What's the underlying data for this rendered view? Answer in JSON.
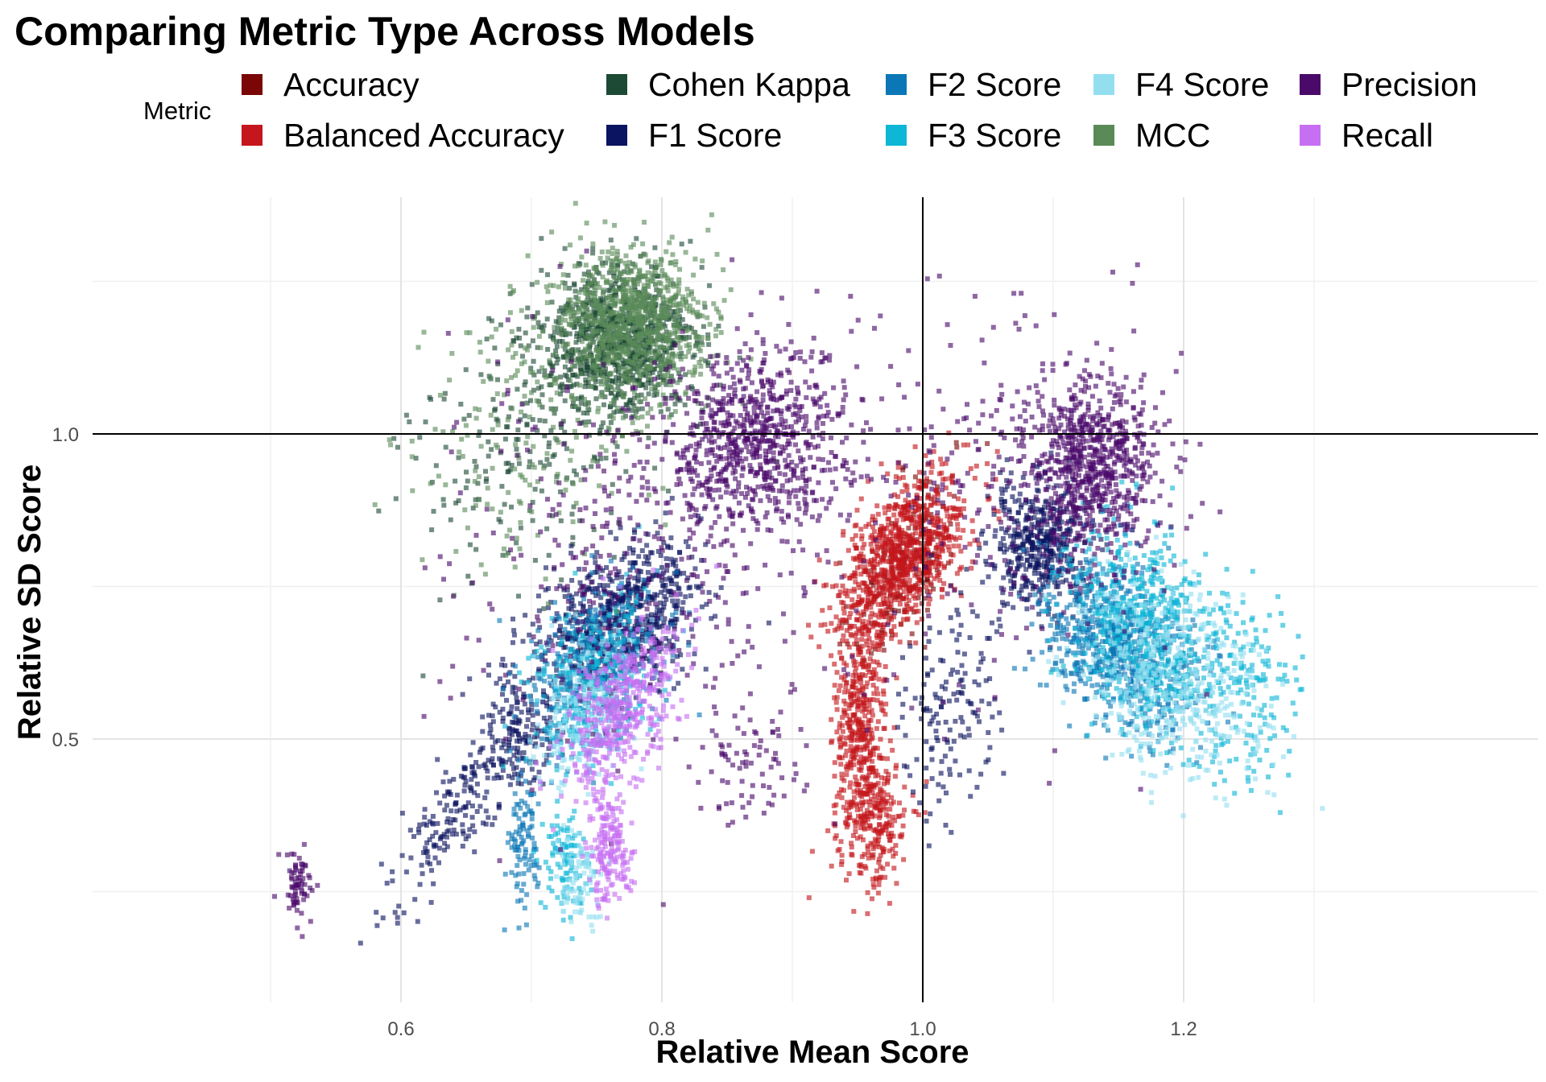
{
  "chart_data": {
    "type": "scatter",
    "title": "Comparing Metric Type Across Models",
    "xlabel": "Relative Mean Score",
    "ylabel": "Relative SD Score",
    "xlim": [
      0.39,
      1.33
    ],
    "ylim": [
      0.12,
      1.36
    ],
    "x_ticks": [
      0.6,
      0.8,
      1.0,
      1.2
    ],
    "x_tick_labels": [
      "0.6",
      "0.8",
      "1.0",
      "1.2"
    ],
    "y_ticks": [
      0.5,
      1.0
    ],
    "y_tick_labels": [
      "0.5",
      "1.0"
    ],
    "grid": true,
    "reference_lines": {
      "x": 1.0,
      "y": 1.0
    },
    "legend_title": "Metric",
    "legend_position": "top",
    "series": [
      {
        "name": "Accuracy",
        "color": "#7a0606",
        "clusters": [
          {
            "x": 0.985,
            "y": 0.78,
            "sx": 0.02,
            "sy": 0.08,
            "r": 0.6,
            "n": 150
          }
        ]
      },
      {
        "name": "Balanced Accuracy",
        "color": "#c4161c",
        "clusters": [
          {
            "x": 0.985,
            "y": 0.8,
            "sx": 0.025,
            "sy": 0.07,
            "r": 0.55,
            "n": 900
          },
          {
            "x": 0.952,
            "y": 0.52,
            "sx": 0.01,
            "sy": 0.1,
            "r": 0.0,
            "n": 450
          },
          {
            "x": 0.965,
            "y": 0.36,
            "sx": 0.012,
            "sy": 0.05,
            "r": 0.0,
            "n": 200
          }
        ]
      },
      {
        "name": "Cohen Kappa",
        "color": "#1d4a35",
        "clusters": [
          {
            "x": 0.765,
            "y": 1.15,
            "sx": 0.03,
            "sy": 0.06,
            "r": 0.0,
            "n": 900
          },
          {
            "x": 0.7,
            "y": 1.0,
            "sx": 0.05,
            "sy": 0.12,
            "r": 0.3,
            "n": 220
          }
        ]
      },
      {
        "name": "F1 Score",
        "color": "#0b1460",
        "clusters": [
          {
            "x": 0.77,
            "y": 0.7,
            "sx": 0.03,
            "sy": 0.06,
            "r": 0.3,
            "n": 650
          },
          {
            "x": 0.69,
            "y": 0.53,
            "sx": 0.015,
            "sy": 0.05,
            "r": 0.0,
            "n": 150
          },
          {
            "x": 0.65,
            "y": 0.4,
            "sx": 0.03,
            "sy": 0.08,
            "r": 0.85,
            "n": 200
          },
          {
            "x": 1.09,
            "y": 0.82,
            "sx": 0.02,
            "sy": 0.05,
            "r": 0.0,
            "n": 450
          },
          {
            "x": 1.02,
            "y": 0.55,
            "sx": 0.02,
            "sy": 0.09,
            "r": 0.3,
            "n": 150
          }
        ]
      },
      {
        "name": "F2 Score",
        "color": "#0b77b6",
        "clusters": [
          {
            "x": 0.75,
            "y": 0.62,
            "sx": 0.025,
            "sy": 0.07,
            "r": 0.4,
            "n": 350
          },
          {
            "x": 0.695,
            "y": 0.33,
            "sx": 0.006,
            "sy": 0.06,
            "r": 0.0,
            "n": 100
          },
          {
            "x": 1.15,
            "y": 0.65,
            "sx": 0.03,
            "sy": 0.07,
            "r": -0.4,
            "n": 700
          }
        ]
      },
      {
        "name": "F3 Score",
        "color": "#0fb7d6",
        "clusters": [
          {
            "x": 0.745,
            "y": 0.58,
            "sx": 0.025,
            "sy": 0.07,
            "r": 0.4,
            "n": 300
          },
          {
            "x": 0.725,
            "y": 0.3,
            "sx": 0.008,
            "sy": 0.05,
            "r": 0.0,
            "n": 100
          },
          {
            "x": 1.17,
            "y": 0.68,
            "sx": 0.03,
            "sy": 0.08,
            "r": -0.3,
            "n": 600
          },
          {
            "x": 1.25,
            "y": 0.58,
            "sx": 0.02,
            "sy": 0.08,
            "r": 0.0,
            "n": 150
          }
        ]
      },
      {
        "name": "F4 Score",
        "color": "#93dff0",
        "clusters": [
          {
            "x": 0.74,
            "y": 0.55,
            "sx": 0.02,
            "sy": 0.06,
            "r": 0.4,
            "n": 200
          },
          {
            "x": 0.735,
            "y": 0.27,
            "sx": 0.008,
            "sy": 0.04,
            "r": 0.0,
            "n": 80
          },
          {
            "x": 1.19,
            "y": 0.6,
            "sx": 0.035,
            "sy": 0.08,
            "r": -0.3,
            "n": 500
          }
        ]
      },
      {
        "name": "MCC",
        "color": "#5a8a58",
        "clusters": [
          {
            "x": 0.775,
            "y": 1.18,
            "sx": 0.03,
            "sy": 0.06,
            "r": 0.0,
            "n": 900
          },
          {
            "x": 0.7,
            "y": 1.0,
            "sx": 0.05,
            "sy": 0.13,
            "r": 0.3,
            "n": 200
          }
        ]
      },
      {
        "name": "Precision",
        "color": "#4b0a6a",
        "clusters": [
          {
            "x": 0.87,
            "y": 0.99,
            "sx": 0.035,
            "sy": 0.08,
            "r": 0.0,
            "n": 750
          },
          {
            "x": 1.13,
            "y": 0.95,
            "sx": 0.025,
            "sy": 0.07,
            "r": 0.0,
            "n": 700
          },
          {
            "x": 0.8,
            "y": 0.8,
            "sx": 0.08,
            "sy": 0.18,
            "r": 0.0,
            "n": 400
          },
          {
            "x": 1.06,
            "y": 0.9,
            "sx": 0.06,
            "sy": 0.15,
            "r": 0.0,
            "n": 250
          },
          {
            "x": 0.52,
            "y": 0.26,
            "sx": 0.006,
            "sy": 0.03,
            "r": 0.0,
            "n": 70
          },
          {
            "x": 0.87,
            "y": 0.45,
            "sx": 0.02,
            "sy": 0.05,
            "r": 0.0,
            "n": 70
          }
        ]
      },
      {
        "name": "Recall",
        "color": "#c76ff2",
        "clusters": [
          {
            "x": 0.77,
            "y": 0.55,
            "sx": 0.022,
            "sy": 0.07,
            "r": 0.5,
            "n": 450
          },
          {
            "x": 0.76,
            "y": 0.32,
            "sx": 0.008,
            "sy": 0.05,
            "r": 0.0,
            "n": 180
          }
        ]
      }
    ]
  }
}
